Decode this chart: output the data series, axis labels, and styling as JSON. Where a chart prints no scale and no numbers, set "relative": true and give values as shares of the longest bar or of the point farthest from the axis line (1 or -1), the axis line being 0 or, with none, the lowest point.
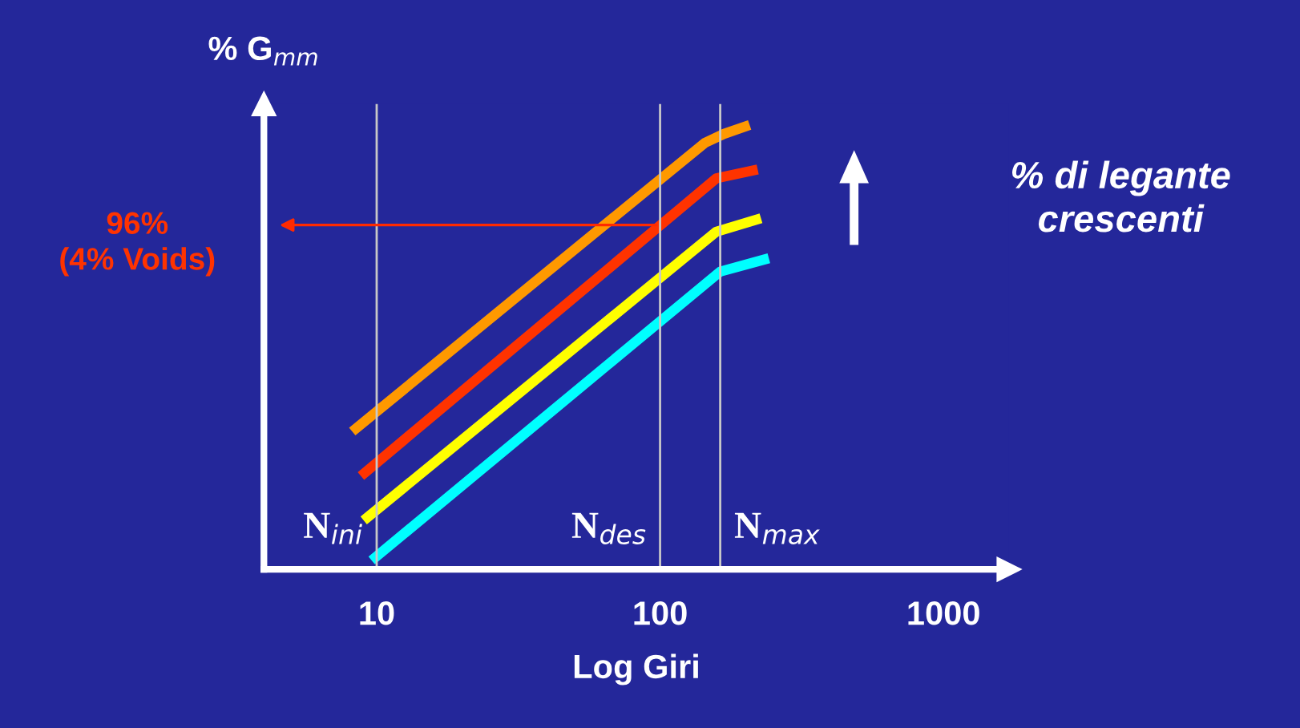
{
  "chart_data": {
    "type": "line",
    "relative": true,
    "log": "x",
    "xlabel": "Log Giri",
    "ylabel": "% G$_{mm}$",
    "series": [
      {
        "color": "#ff9900",
        "x": [
          8.2,
          144,
          168,
          207
        ],
        "values": [
          0.31,
          0.96,
          0.98,
          1.0
        ]
      },
      {
        "color": "#ff3300",
        "x": [
          8.8,
          158,
          221
        ],
        "values": [
          0.21,
          0.88,
          0.9
        ]
      },
      {
        "color": "#ffff00",
        "x": [
          9.0,
          158,
          227
        ],
        "values": [
          0.11,
          0.76,
          0.79
        ]
      },
      {
        "color": "#00ffff",
        "x": [
          9.6,
          163,
          242
        ],
        "values": [
          0.02,
          0.67,
          0.7
        ]
      }
    ],
    "xlim": [
      4,
      1700
    ],
    "xticks": [
      10,
      100,
      1000
    ],
    "ref_lines": [
      {
        "axis": "x",
        "value": 10,
        "label": "N$_{ini}$",
        "color": "#c8c8c8"
      },
      {
        "axis": "x",
        "value": 100,
        "label": "N$_{des}$",
        "color": "#c8c8c8"
      },
      {
        "axis": "x",
        "value": 163,
        "label": "N$_{max}$",
        "color": "#c8c8c8"
      }
    ],
    "annotations": [
      "96%\n(4% Voids)",
      "% di legante\ncrescenti"
    ],
    "legend": false,
    "grid": false,
    "marker": "none",
    "line_style": "solid"
  }
}
